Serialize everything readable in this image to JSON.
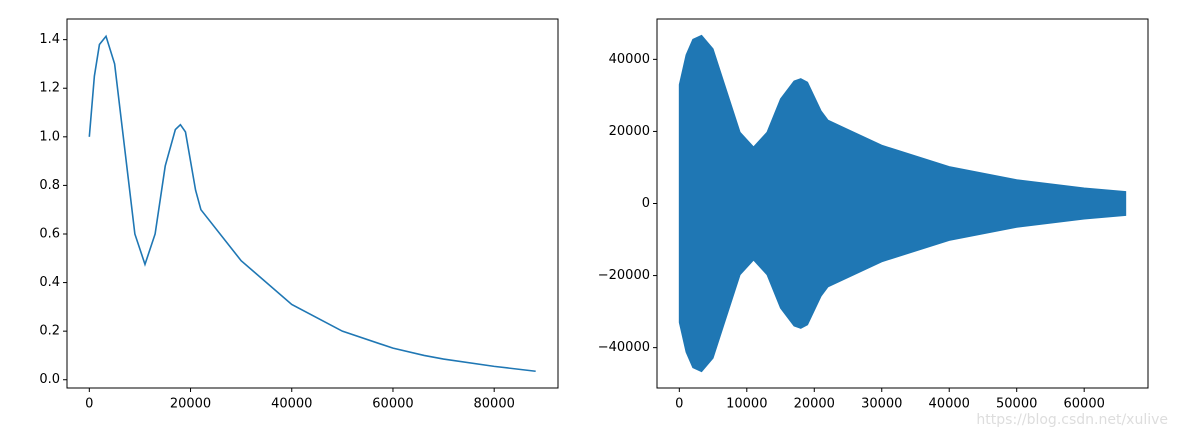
{
  "chart_data": [
    {
      "type": "line",
      "color": "#1f77b4",
      "x": [
        0,
        1000,
        2000,
        3300,
        5000,
        7000,
        9000,
        11000,
        13000,
        15000,
        17000,
        18000,
        19000,
        20000,
        21000,
        22050,
        30000,
        40000,
        50000,
        60000,
        66150,
        70000,
        80000,
        88200
      ],
      "values": [
        1.0,
        1.25,
        1.38,
        1.414,
        1.3,
        0.95,
        0.6,
        0.475,
        0.6,
        0.88,
        1.03,
        1.05,
        1.02,
        0.9,
        0.78,
        0.7,
        0.49,
        0.31,
        0.2,
        0.13,
        0.1,
        0.085,
        0.055,
        0.035
      ],
      "xlim": [
        -4410,
        92610
      ],
      "xticks": [
        0,
        20000,
        40000,
        60000,
        80000
      ],
      "ylim": [
        -0.034,
        1.485
      ],
      "yticks": [
        {
          "value": 0,
          "label": "0.0"
        },
        0.2,
        0.4,
        0.6,
        0.8,
        {
          "value": 1,
          "label": "1.0"
        },
        1.2,
        1.4
      ]
    },
    {
      "type": "band",
      "color": "#1f77b4",
      "x": [
        0,
        1000,
        2000,
        3300,
        5000,
        7000,
        9000,
        11000,
        13000,
        15000,
        17000,
        18000,
        19000,
        20000,
        21000,
        22050,
        30000,
        40000,
        50000,
        60000,
        66150
      ],
      "upper": [
        33000,
        41250,
        45540,
        46660,
        42900,
        31350,
        19800,
        15675,
        19800,
        29040,
        33990,
        34650,
        33660,
        29700,
        25740,
        23100,
        16170,
        10230,
        6600,
        4290,
        3300
      ],
      "lower": [
        -33000,
        -41250,
        -45540,
        -46660,
        -42900,
        -31350,
        -19800,
        -15675,
        -19800,
        -29040,
        -33990,
        -34650,
        -33660,
        -29700,
        -25740,
        -23100,
        -16170,
        -10230,
        -6600,
        -4290,
        -3300
      ],
      "xlim": [
        -3308,
        69458
      ],
      "xticks": [
        0,
        10000,
        20000,
        30000,
        40000,
        50000,
        60000
      ],
      "ylim": [
        -51200,
        51200
      ],
      "yticks": [
        {
          "value": -40000,
          "label": "−40000"
        },
        {
          "value": -20000,
          "label": "−20000"
        },
        0,
        20000,
        40000
      ]
    }
  ],
  "watermark": "https://blog.csdn.net/xulive"
}
